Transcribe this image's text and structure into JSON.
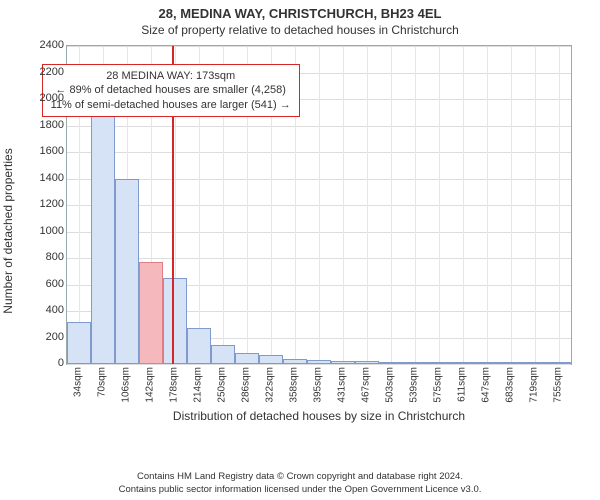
{
  "title_main": "28, MEDINA WAY, CHRISTCHURCH, BH23 4EL",
  "title_sub": "Size of property relative to detached houses in Christchurch",
  "ylabel": "Number of detached properties",
  "xlabel": "Distribution of detached houses by size in Christchurch",
  "chart": {
    "type": "histogram",
    "ylim": [
      0,
      2400
    ],
    "ytick_step": 200,
    "yticks": [
      0,
      200,
      400,
      600,
      800,
      1000,
      1200,
      1400,
      1600,
      1800,
      2000,
      2200,
      2400
    ],
    "x_categories": [
      "34sqm",
      "70sqm",
      "106sqm",
      "142sqm",
      "178sqm",
      "214sqm",
      "250sqm",
      "286sqm",
      "322sqm",
      "358sqm",
      "395sqm",
      "431sqm",
      "467sqm",
      "503sqm",
      "539sqm",
      "575sqm",
      "611sqm",
      "647sqm",
      "683sqm",
      "719sqm",
      "755sqm"
    ],
    "values": [
      320,
      1970,
      1400,
      770,
      650,
      275,
      140,
      80,
      70,
      40,
      30,
      25,
      20,
      15,
      10,
      8,
      6,
      5,
      4,
      3,
      2
    ],
    "bar_color": "#d6e2f5",
    "bar_border": "#7f9acc",
    "highlight_index": 3,
    "highlight_color": "#f5b9bd",
    "highlight_border": "#e07f86",
    "refline_position_index": 3.86,
    "refline_color": "#d62728",
    "background_color": "#ffffff",
    "grid_color": "#e6e6e6",
    "axis_color": "#9aa"
  },
  "annotation": {
    "line1": "28 MEDINA WAY: 173sqm",
    "line2": "← 89% of detached houses are smaller (4,258)",
    "line3": "11% of semi-detached houses are larger (541) →",
    "border_color": "#d62728"
  },
  "footer": {
    "line1": "Contains HM Land Registry data © Crown copyright and database right 2024.",
    "line2": "Contains public sector information licensed under the Open Government Licence v3.0."
  }
}
